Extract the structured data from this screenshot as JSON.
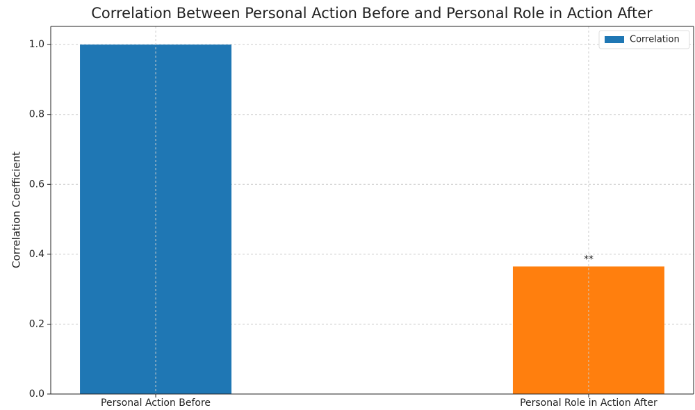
{
  "chart_data": {
    "type": "bar",
    "title": "Correlation Between Personal Action Before and Personal Role in Action After",
    "ylabel": "Correlation Coefficient",
    "categories": [
      "Personal Action Before",
      "Personal Role in Action After"
    ],
    "series": [
      {
        "name": "Correlation",
        "color": "#1f77b4",
        "colors": [
          "#1f77b4",
          "#ff7f0e"
        ],
        "values": [
          1.0,
          0.365
        ]
      }
    ],
    "annotations": [
      {
        "text": "**",
        "x": "Personal Role in Action After"
      }
    ],
    "ylim": [
      0,
      1.052
    ],
    "yticks": [
      {
        "value": 0,
        "label": "0.0"
      },
      {
        "value": 0.2,
        "label": "0.2"
      },
      {
        "value": 0.4,
        "label": "0.4"
      },
      {
        "value": 0.6,
        "label": "0.6"
      },
      {
        "value": 0.8,
        "label": "0.8"
      },
      {
        "value": 1.0,
        "label": "1.0"
      }
    ],
    "grid": true,
    "legend": "upper right"
  }
}
